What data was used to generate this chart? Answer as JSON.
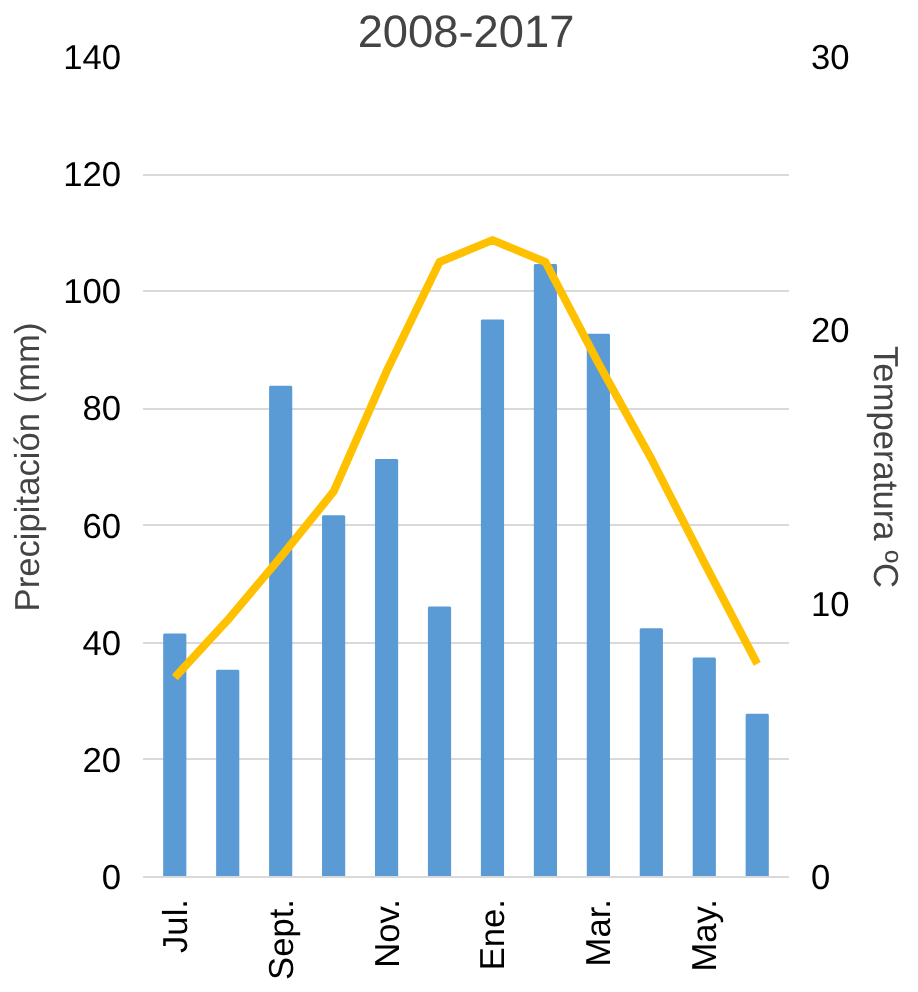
{
  "chart_data": {
    "type": "bar",
    "title": "2008-2017",
    "ylabel": "Precipitación (mm)",
    "y2label": "Temperatura ºC",
    "categories": [
      "Jul.",
      null,
      "Sept.",
      null,
      "Nov.",
      null,
      "Ene.",
      null,
      "Mar.",
      null,
      "May.",
      null
    ],
    "series": [
      {
        "color": "#5b9bd5",
        "values": [
          41.4,
          35.2,
          83.7,
          61.6,
          71.2,
          46,
          95,
          104.5,
          92.6,
          42.3,
          37.3,
          27.7
        ]
      },
      {
        "type": "line",
        "axis": "y2",
        "color": "#ffc000",
        "values": [
          7.3,
          9.4,
          11.7,
          14.1,
          18.5,
          22.5,
          23.3,
          22.5,
          18.8,
          15.3,
          11.5,
          7.8
        ]
      }
    ],
    "ylim": [
      0,
      140
    ],
    "yticks": [
      0,
      20,
      40,
      60,
      80,
      100,
      120,
      140
    ],
    "y2lim": [
      0,
      30
    ],
    "y2ticks": [
      0,
      10,
      20,
      30
    ],
    "grid": "y"
  }
}
